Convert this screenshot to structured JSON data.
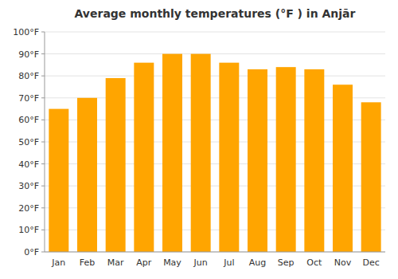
{
  "chart_data": {
    "type": "bar",
    "title": "Average monthly temperatures (°F ) in Anjār",
    "categories": [
      "Jan",
      "Feb",
      "Mar",
      "Apr",
      "May",
      "Jun",
      "Jul",
      "Aug",
      "Sep",
      "Oct",
      "Nov",
      "Dec"
    ],
    "values": [
      65,
      70,
      79,
      86,
      90,
      90,
      86,
      83,
      84,
      83,
      76,
      68
    ],
    "color": "#FFA500",
    "ylim": [
      0,
      100
    ],
    "yticks": [
      {
        "value": 0,
        "label": "0°F"
      },
      {
        "value": 10,
        "label": "10°F"
      },
      {
        "value": 20,
        "label": "20°F"
      },
      {
        "value": 30,
        "label": "30°F"
      },
      {
        "value": 40,
        "label": "40°F"
      },
      {
        "value": 50,
        "label": "50°F"
      },
      {
        "value": 60,
        "label": "60°F"
      },
      {
        "value": 70,
        "label": "70°F"
      },
      {
        "value": 80,
        "label": "80°F"
      },
      {
        "value": 90,
        "label": "90°F"
      },
      {
        "value": 100,
        "label": "100°F"
      }
    ],
    "grid": true
  }
}
